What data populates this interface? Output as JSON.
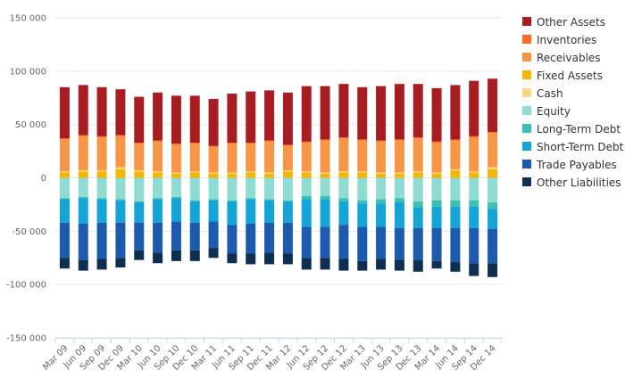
{
  "chart_data": {
    "type": "bar",
    "stacked": true,
    "categories": [
      "Mar 09",
      "Jun 09",
      "Sep 09",
      "Dec 09",
      "Mar 10",
      "Jun 10",
      "Sep 10",
      "Dec 10",
      "Mar 11",
      "Jun 11",
      "Sep 11",
      "Dec 11",
      "Mar 12",
      "Jun 12",
      "Sep 12",
      "Dec 12",
      "Mar 13",
      "Jun 13",
      "Sep 13",
      "Dec 13",
      "Mar 14",
      "Jun 14",
      "Sep 14",
      "Dec 14"
    ],
    "ylim": [
      -150000,
      150000
    ],
    "yticks": [
      150000,
      100000,
      50000,
      0,
      -50000,
      -100000,
      -150000
    ],
    "ytick_labels": [
      "150 000",
      "100 000",
      "50 000",
      "0",
      "-50 000",
      "-100 000",
      "-150 000"
    ],
    "grid": true,
    "legend_position": "right",
    "title": "",
    "xlabel": "",
    "ylabel": "",
    "positive_series": [
      {
        "name": "Fixed Assets",
        "color": "#f2b705",
        "values": [
          5000,
          6000,
          6000,
          8000,
          6000,
          5000,
          4000,
          5000,
          4000,
          4000,
          5000,
          4000,
          6000,
          5000,
          4000,
          5000,
          5000,
          4000,
          4000,
          5000,
          4000,
          7000,
          5000,
          8000
        ]
      },
      {
        "name": "Cash",
        "color": "#fcd680",
        "values": [
          1000,
          1000,
          1000,
          2000,
          1000,
          1000,
          1000,
          1000,
          1000,
          1000,
          1000,
          1000,
          1000,
          1000,
          1000,
          1000,
          1000,
          1000,
          1000,
          1000,
          1000,
          1000,
          1000,
          2000
        ]
      },
      {
        "name": "Receivables",
        "color": "#f79646",
        "values": [
          30000,
          32000,
          31000,
          29000,
          25000,
          28000,
          26000,
          26000,
          24000,
          27000,
          26000,
          29000,
          23000,
          27000,
          30000,
          31000,
          29000,
          29000,
          30000,
          31000,
          28000,
          27000,
          32000,
          32000
        ]
      },
      {
        "name": "Inventories",
        "color": "#ff6a2b",
        "values": [
          1000,
          1000,
          1000,
          1000,
          1000,
          1000,
          1000,
          1000,
          1000,
          1000,
          1000,
          1000,
          1000,
          1000,
          1000,
          1000,
          1000,
          1000,
          1000,
          1000,
          1000,
          1000,
          1000,
          1000
        ]
      },
      {
        "name": "Other Assets",
        "color": "#a71d22",
        "values": [
          48000,
          47000,
          46000,
          43000,
          43000,
          45000,
          45000,
          44000,
          44000,
          46000,
          48000,
          47000,
          49000,
          52000,
          50000,
          50000,
          49000,
          51000,
          52000,
          50000,
          50000,
          51000,
          52000,
          50000
        ]
      }
    ],
    "negative_series": [
      {
        "name": "Equity",
        "color": "#8fdcd3",
        "values": [
          -19000,
          -18000,
          -19000,
          -20000,
          -22000,
          -19000,
          -18000,
          -21000,
          -20000,
          -21000,
          -19000,
          -20000,
          -21000,
          -17000,
          -17000,
          -19000,
          -21000,
          -20000,
          -19000,
          -22000,
          -21000,
          -21000,
          -21000,
          -23000
        ]
      },
      {
        "name": "Long-Term Debt",
        "color": "#3cc0b0",
        "values": [
          -1000,
          -1000,
          -1000,
          -1000,
          -1000,
          -1000,
          -1000,
          -1000,
          -1000,
          -1000,
          -1000,
          -1000,
          -1000,
          -3000,
          -3000,
          -3000,
          -3000,
          -4000,
          -4000,
          -6000,
          -6000,
          -6000,
          -6000,
          -6000
        ]
      },
      {
        "name": "Short-Term Debt",
        "color": "#12a5d6",
        "values": [
          -22000,
          -24000,
          -22000,
          -21000,
          -19000,
          -22000,
          -22000,
          -20000,
          -20000,
          -22000,
          -23000,
          -21000,
          -20000,
          -26000,
          -26000,
          -22000,
          -22000,
          -22000,
          -24000,
          -19000,
          -20000,
          -20000,
          -20000,
          -19000
        ]
      },
      {
        "name": "Trade Payables",
        "color": "#1b5aad",
        "values": [
          -33000,
          -34000,
          -34000,
          -33000,
          -26000,
          -28000,
          -27000,
          -26000,
          -25000,
          -27000,
          -28000,
          -28000,
          -29000,
          -29000,
          -29000,
          -32000,
          -32000,
          -30000,
          -30000,
          -30000,
          -31000,
          -32000,
          -33000,
          -32000
        ]
      },
      {
        "name": "Other Liabilities",
        "color": "#0e2e52",
        "values": [
          -10000,
          -10000,
          -10000,
          -9000,
          -9000,
          -10000,
          -10000,
          -10000,
          -9000,
          -9000,
          -10000,
          -11000,
          -10000,
          -11000,
          -11000,
          -11000,
          -9000,
          -10000,
          -10000,
          -11000,
          -7000,
          -9000,
          -12000,
          -13000
        ]
      }
    ],
    "legend": [
      {
        "name": "Other Assets",
        "color": "#a71d22"
      },
      {
        "name": "Inventories",
        "color": "#ff6a2b"
      },
      {
        "name": "Receivables",
        "color": "#f79646"
      },
      {
        "name": "Fixed Assets",
        "color": "#f2b705"
      },
      {
        "name": "Cash",
        "color": "#fcd680"
      },
      {
        "name": "Equity",
        "color": "#8fdcd3"
      },
      {
        "name": "Long-Term Debt",
        "color": "#3cc0b0"
      },
      {
        "name": "Short-Term Debt",
        "color": "#12a5d6"
      },
      {
        "name": "Trade Payables",
        "color": "#1b5aad"
      },
      {
        "name": "Other Liabilities",
        "color": "#0e2e52"
      }
    ]
  }
}
